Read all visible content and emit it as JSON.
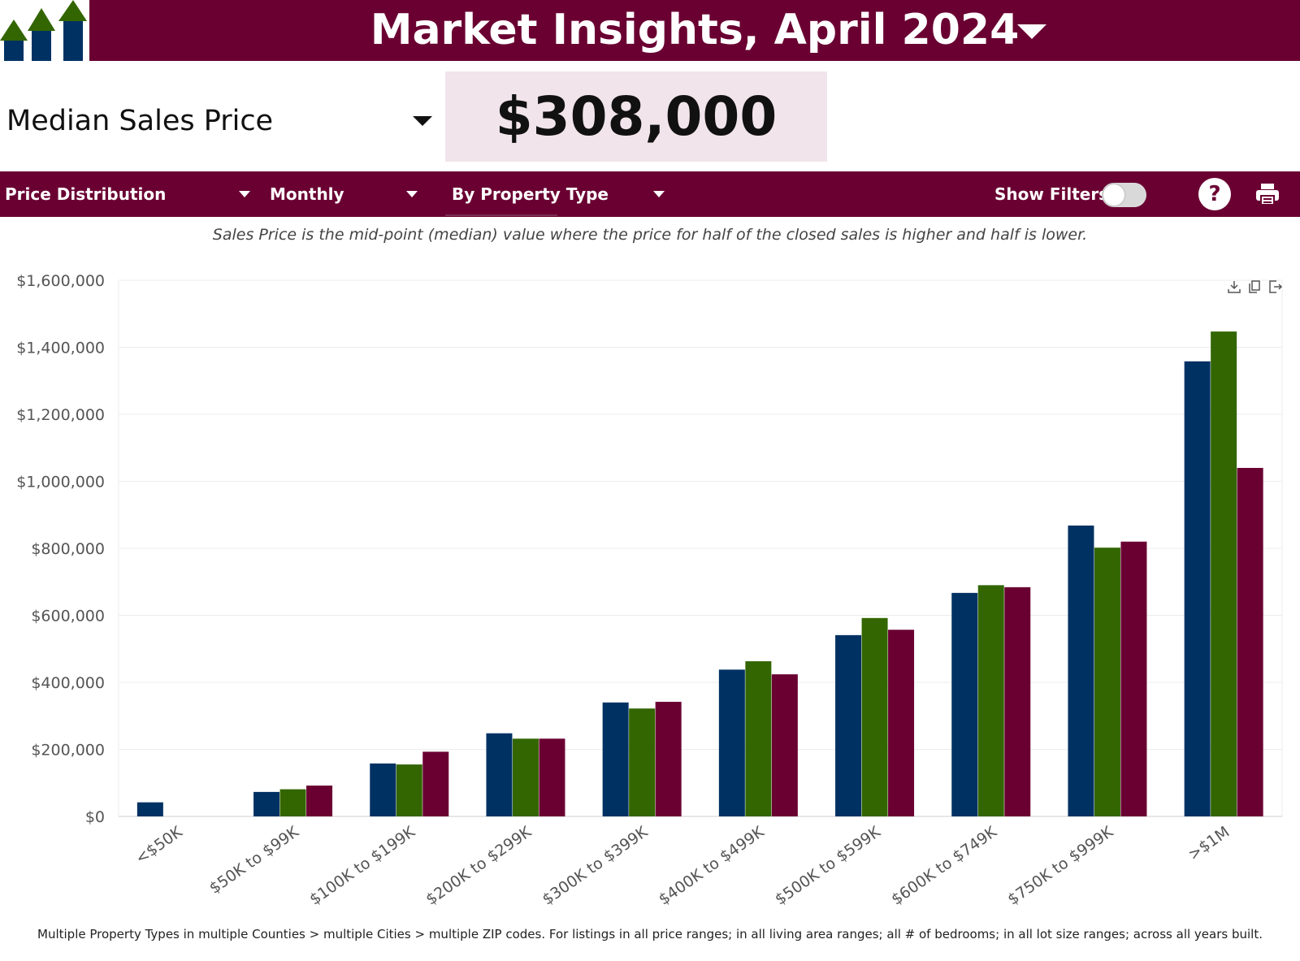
{
  "header": {
    "title": "Market Insights, April 2024",
    "logo_icon": "bar-arrows-logo-icon",
    "dropdown_icon": "caret-down-icon"
  },
  "metric": {
    "label": "Median Sales Price",
    "value": "$308,000",
    "dropdown_icon": "caret-down-icon"
  },
  "toolbar": {
    "chart_type": "Price Distribution (Column)",
    "period": "Monthly",
    "grouping": "By Property Type",
    "show_filters_label": "Show Filters:",
    "show_filters_on": false,
    "help_label": "?",
    "help_icon": "help-icon",
    "print_icon": "printer-icon"
  },
  "description": "Sales Price is the mid-point (median) value where the price for half of the closed sales is higher and half is lower.",
  "chart_tools": [
    "download-icon",
    "copy-icon",
    "export-icon"
  ],
  "footnote": "Multiple Property Types in multiple Counties > multiple Cities > multiple ZIP codes. For listings in all price ranges; in all living area ranges; all # of bedrooms; in all lot size ranges; across all years built.",
  "colors": {
    "brand": "#6a0032",
    "series_1": "#003163",
    "series_2": "#336600",
    "series_3": "#6a0032",
    "value_box": "#f1e4ea"
  },
  "chart_data": {
    "type": "bar",
    "categories": [
      "<$50K",
      "$50K to $99K",
      "$100K to $199K",
      "$200K to $299K",
      "$300K to $399K",
      "$400K to $499K",
      "$500K to $599K",
      "$600K to $749K",
      "$750K to $999K",
      ">$1M"
    ],
    "series": [
      {
        "values": [
          42000,
          73000,
          158000,
          248000,
          340000,
          438000,
          541000,
          667000,
          868000,
          1358000
        ]
      },
      {
        "values": [
          null,
          81000,
          155000,
          232000,
          322000,
          463000,
          592000,
          690000,
          802000,
          1447000
        ]
      },
      {
        "values": [
          null,
          92000,
          193000,
          232000,
          342000,
          424000,
          557000,
          684000,
          820000,
          1040000
        ]
      }
    ],
    "ylim": [
      0,
      1600000
    ],
    "y_ticks": [
      {
        "value": 0,
        "label": "$0"
      },
      {
        "value": 200000,
        "label": "$200,000"
      },
      {
        "value": 400000,
        "label": "$400,000"
      },
      {
        "value": 600000,
        "label": "$600,000"
      },
      {
        "value": 800000,
        "label": "$800,000"
      },
      {
        "value": 1000000,
        "label": "$1,000,000"
      },
      {
        "value": 1200000,
        "label": "$1,200,000"
      },
      {
        "value": 1400000,
        "label": "$1,400,000"
      },
      {
        "value": 1600000,
        "label": "$1,600,000"
      }
    ],
    "grid": true,
    "legend": "none"
  }
}
